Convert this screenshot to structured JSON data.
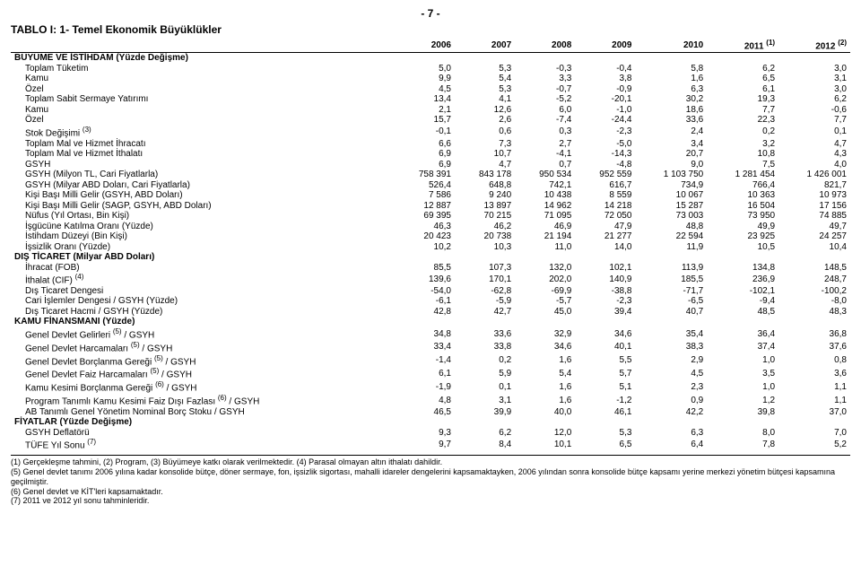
{
  "page_number": "- 7 -",
  "title": "TABLO I: 1- Temel Ekonomik Büyüklükler",
  "columns": [
    "2006",
    "2007",
    "2008",
    "2009",
    "2010",
    "2011 <sup>(1)</sup>",
    "2012 <sup>(2)</sup>"
  ],
  "rows": [
    {
      "type": "section",
      "label": "BÜYÜME VE İSTİHDAM (Yüzde Değişme)"
    },
    {
      "indent": 1,
      "label": "Toplam Tüketim",
      "v": [
        "5,0",
        "5,3",
        "-0,3",
        "-0,4",
        "5,8",
        "6,2",
        "3,0"
      ]
    },
    {
      "indent": 1,
      "label": "Kamu",
      "v": [
        "9,9",
        "5,4",
        "3,3",
        "3,8",
        "1,6",
        "6,5",
        "3,1"
      ]
    },
    {
      "indent": 1,
      "label": "Özel",
      "v": [
        "4,5",
        "5,3",
        "-0,7",
        "-0,9",
        "6,3",
        "6,1",
        "3,0"
      ]
    },
    {
      "indent": 1,
      "label": "Toplam Sabit Sermaye Yatırımı",
      "v": [
        "13,4",
        "4,1",
        "-5,2",
        "-20,1",
        "30,2",
        "19,3",
        "6,2"
      ]
    },
    {
      "indent": 1,
      "label": "Kamu",
      "v": [
        "2,1",
        "12,6",
        "6,0",
        "-1,0",
        "18,6",
        "7,7",
        "-0,6"
      ]
    },
    {
      "indent": 1,
      "label": "Özel",
      "v": [
        "15,7",
        "2,6",
        "-7,4",
        "-24,4",
        "33,6",
        "22,3",
        "7,7"
      ]
    },
    {
      "indent": 1,
      "label": "Stok Değişimi <sup>(3)</sup>",
      "v": [
        "-0,1",
        "0,6",
        "0,3",
        "-2,3",
        "2,4",
        "0,2",
        "0,1"
      ]
    },
    {
      "indent": 1,
      "label": "Toplam Mal ve Hizmet İhracatı",
      "v": [
        "6,6",
        "7,3",
        "2,7",
        "-5,0",
        "3,4",
        "3,2",
        "4,7"
      ]
    },
    {
      "indent": 1,
      "label": "Toplam Mal ve Hizmet İthalatı",
      "v": [
        "6,9",
        "10,7",
        "-4,1",
        "-14,3",
        "20,7",
        "10,8",
        "4,3"
      ]
    },
    {
      "indent": 1,
      "label": "GSYH",
      "v": [
        "6,9",
        "4,7",
        "0,7",
        "-4,8",
        "9,0",
        "7,5",
        "4,0"
      ]
    },
    {
      "indent": 1,
      "label": "GSYH (Milyon TL, Cari Fiyatlarla)",
      "v": [
        "758 391",
        "843 178",
        "950 534",
        "952 559",
        "1 103 750",
        "1 281 454",
        "1 426 001"
      ]
    },
    {
      "indent": 1,
      "label": "GSYH (Milyar ABD Doları, Cari Fiyatlarla)",
      "v": [
        "526,4",
        "648,8",
        "742,1",
        "616,7",
        "734,9",
        "766,4",
        "821,7"
      ]
    },
    {
      "indent": 1,
      "label": "Kişi Başı Milli Gelir (GSYH, ABD Doları)",
      "v": [
        "7 586",
        "9 240",
        "10 438",
        "8 559",
        "10 067",
        "10 363",
        "10 973"
      ]
    },
    {
      "indent": 1,
      "label": "Kişi Başı Milli Gelir (SAGP, GSYH, ABD Doları)",
      "v": [
        "12 887",
        "13 897",
        "14 962",
        "14 218",
        "15 287",
        "16 504",
        "17 156"
      ]
    },
    {
      "indent": 1,
      "label": "Nüfus (Yıl Ortası, Bin Kişi)",
      "v": [
        "69 395",
        "70 215",
        "71 095",
        "72 050",
        "73 003",
        "73 950",
        "74 885"
      ]
    },
    {
      "indent": 1,
      "label": "İşgücüne Katılma Oranı (Yüzde)",
      "v": [
        "46,3",
        "46,2",
        "46,9",
        "47,9",
        "48,8",
        "49,9",
        "49,7"
      ]
    },
    {
      "indent": 1,
      "label": "İstihdam Düzeyi (Bin Kişi)",
      "v": [
        "20 423",
        "20 738",
        "21 194",
        "21 277",
        "22 594",
        "23 925",
        "24 257"
      ]
    },
    {
      "indent": 1,
      "label": "İşsizlik Oranı (Yüzde)",
      "v": [
        "10,2",
        "10,3",
        "11,0",
        "14,0",
        "11,9",
        "10,5",
        "10,4"
      ]
    },
    {
      "type": "section",
      "label": "DIŞ TİCARET (Milyar ABD Doları)"
    },
    {
      "indent": 1,
      "label": "İhracat (FOB)",
      "v": [
        "85,5",
        "107,3",
        "132,0",
        "102,1",
        "113,9",
        "134,8",
        "148,5"
      ]
    },
    {
      "indent": 1,
      "label": "İthalat (CIF) <sup>(4)</sup>",
      "v": [
        "139,6",
        "170,1",
        "202,0",
        "140,9",
        "185,5",
        "236,9",
        "248,7"
      ]
    },
    {
      "indent": 1,
      "label": "Dış Ticaret Dengesi",
      "v": [
        "-54,0",
        "-62,8",
        "-69,9",
        "-38,8",
        "-71,7",
        "-102,1",
        "-100,2"
      ]
    },
    {
      "indent": 1,
      "label": "Cari İşlemler Dengesi / GSYH (Yüzde)",
      "v": [
        "-6,1",
        "-5,9",
        "-5,7",
        "-2,3",
        "-6,5",
        "-9,4",
        "-8,0"
      ]
    },
    {
      "indent": 1,
      "label": "Dış Ticaret Hacmi / GSYH (Yüzde)",
      "v": [
        "42,8",
        "42,7",
        "45,0",
        "39,4",
        "40,7",
        "48,5",
        "48,3"
      ]
    },
    {
      "type": "section",
      "label": "KAMU FİNANSMANI (Yüzde)"
    },
    {
      "indent": 1,
      "label": "Genel Devlet Gelirleri <sup>(5)</sup> / GSYH",
      "v": [
        "34,8",
        "33,6",
        "32,9",
        "34,6",
        "35,4",
        "36,4",
        "36,8"
      ]
    },
    {
      "indent": 1,
      "label": "Genel Devlet Harcamaları <sup>(5)</sup> / GSYH",
      "v": [
        "33,4",
        "33,8",
        "34,6",
        "40,1",
        "38,3",
        "37,4",
        "37,6"
      ]
    },
    {
      "indent": 1,
      "label": "Genel Devlet Borçlanma Gereği <sup>(5)</sup> / GSYH",
      "v": [
        "-1,4",
        "0,2",
        "1,6",
        "5,5",
        "2,9",
        "1,0",
        "0,8"
      ]
    },
    {
      "indent": 1,
      "label": "Genel Devlet Faiz Harcamaları <sup>(5)</sup> / GSYH",
      "v": [
        "6,1",
        "5,9",
        "5,4",
        "5,7",
        "4,5",
        "3,5",
        "3,6"
      ]
    },
    {
      "indent": 1,
      "label": "Kamu Kesimi Borçlanma Gereği <sup>(6)</sup> / GSYH",
      "v": [
        "-1,9",
        "0,1",
        "1,6",
        "5,1",
        "2,3",
        "1,0",
        "1,1"
      ]
    },
    {
      "indent": 1,
      "label": "Program Tanımlı Kamu Kesimi Faiz Dışı Fazlası <sup>(6)</sup> / GSYH",
      "v": [
        "4,8",
        "3,1",
        "1,6",
        "-1,2",
        "0,9",
        "1,2",
        "1,1"
      ]
    },
    {
      "indent": 1,
      "label": "AB Tanımlı Genel Yönetim Nominal Borç Stoku / GSYH",
      "v": [
        "46,5",
        "39,9",
        "40,0",
        "46,1",
        "42,2",
        "39,8",
        "37,0"
      ]
    },
    {
      "type": "section",
      "label": "FİYATLAR (Yüzde Değişme)"
    },
    {
      "indent": 1,
      "label": "GSYH Deflatörü",
      "v": [
        "9,3",
        "6,2",
        "12,0",
        "5,3",
        "6,3",
        "8,0",
        "7,0"
      ]
    },
    {
      "indent": 1,
      "label": "TÜFE Yıl Sonu <sup>(7)</sup>",
      "v": [
        "9,7",
        "8,4",
        "10,1",
        "6,5",
        "6,4",
        "7,8",
        "5,2"
      ]
    }
  ],
  "footnotes": [
    "(1) Gerçekleşme tahmini, (2) Program, (3) Büyümeye katkı olarak verilmektedir. (4) Parasal olmayan altın ithalatı dahildir.",
    "(5) Genel devlet tanımı 2006 yılına kadar konsolide bütçe, döner sermaye, fon, işsizlik sigortası, mahalli idareler dengelerini kapsamaktayken, 2006 yılından sonra konsolide bütçe kapsamı yerine merkezi yönetim bütçesi kapsamına geçilmiştir.",
    "(6) Genel devlet ve KİT'leri kapsamaktadır.",
    "(7) 2011 ve 2012 yıl sonu tahminleridir."
  ]
}
